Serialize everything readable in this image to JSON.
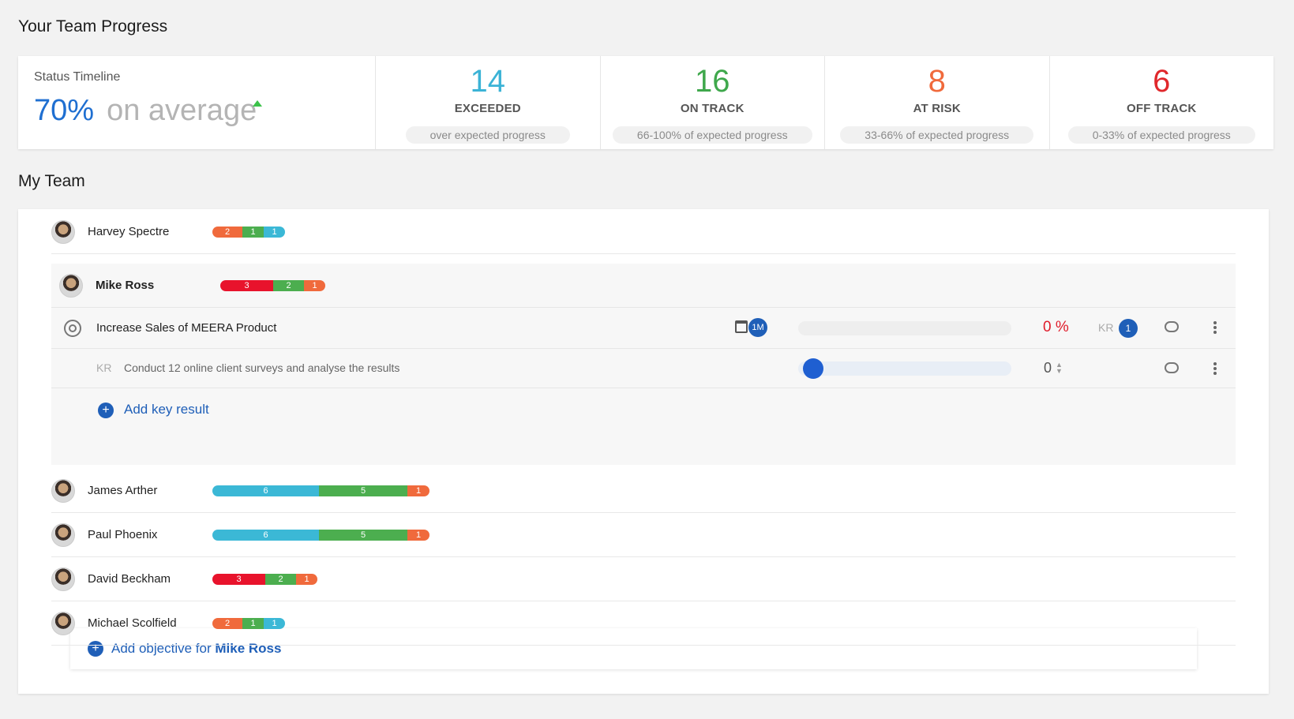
{
  "page": {
    "progress_title": "Your Team Progress",
    "team_title": "My Team"
  },
  "summary": {
    "timeline_label": "Status Timeline",
    "average_value": "70%",
    "average_text": "on average",
    "stats": [
      {
        "value": "14",
        "name": "EXCEEDED",
        "desc": "over expected progress",
        "color": "#3bb3d6"
      },
      {
        "value": "16",
        "name": "ON TRACK",
        "desc": "66-100% of expected progress",
        "color": "#3fa84c"
      },
      {
        "value": "8",
        "name": "AT RISK",
        "desc": "33-66% of expected progress",
        "color": "#f06a3c"
      },
      {
        "value": "6",
        "name": "OFF TRACK",
        "desc": "0-33% of expected progress",
        "color": "#e0282c"
      }
    ]
  },
  "team": {
    "members": [
      {
        "name": "Harvey Spectre",
        "bar": [
          "2",
          "1",
          "1"
        ]
      },
      {
        "name": "Mike Ross",
        "bar": [
          "3",
          "2",
          "1"
        ]
      },
      {
        "name": "James Arther",
        "bar": [
          "6",
          "5",
          "1"
        ]
      },
      {
        "name": "Paul Phoenix",
        "bar": [
          "6",
          "5",
          "1"
        ]
      },
      {
        "name": "David Beckham",
        "bar": [
          "3",
          "2",
          "1"
        ]
      },
      {
        "name": "Michael Scolfield",
        "bar": [
          "2",
          "1",
          "1"
        ]
      }
    ],
    "objective": {
      "title": "Increase Sales of MEERA Product",
      "due_badge": "1M",
      "progress_text": "0 %",
      "kr_label": "KR",
      "kr_count": "1"
    },
    "key_result": {
      "tag": "KR",
      "text": "Conduct 12 online client surveys and analyse the results",
      "value": "0"
    },
    "add_key_result": "Add key result",
    "add_objective_prefix": "Add objective for",
    "add_objective_name": "Mike Ross"
  },
  "colors": {
    "exceeded": "#3bb3d6",
    "on_track": "#4cae4f",
    "at_risk": "#f06a3c",
    "off_track": "#e8132c",
    "accent": "#1f5fb8"
  }
}
